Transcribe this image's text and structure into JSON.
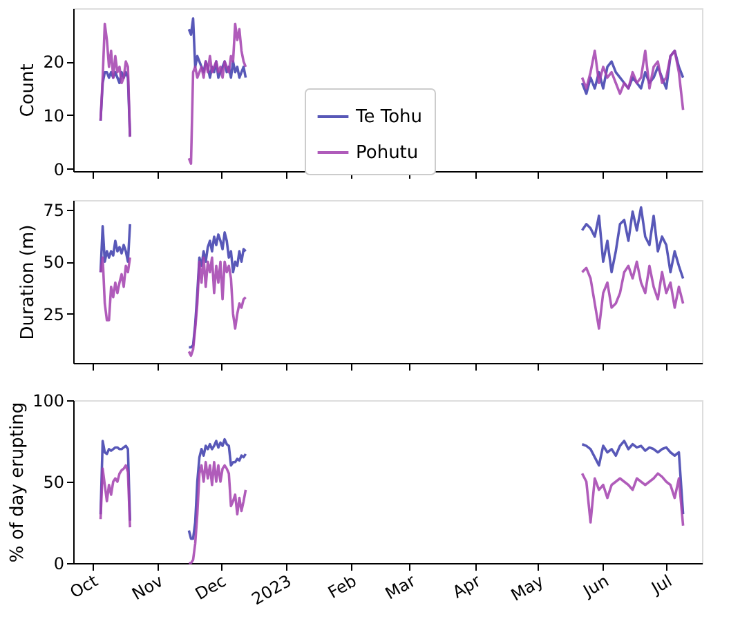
{
  "chart_data": [
    {
      "type": "line",
      "ylabel": "Count",
      "xlim": [
        "2022-09-22",
        "2023-07-18"
      ],
      "ylim": [
        -0.4,
        29.9
      ],
      "yticks": [
        0,
        10,
        20
      ],
      "grid": false,
      "legend": "bottom",
      "tick_labels": "y",
      "line_style": "solid",
      "marker": "none",
      "xticks": [
        {
          "value": "2022-10-01",
          "label": null
        },
        {
          "value": "2022-11-01",
          "label": null
        },
        {
          "value": "2022-12-01",
          "label": null
        },
        {
          "value": "2023-01-01",
          "label": null
        },
        {
          "value": "2023-02-01",
          "label": null
        },
        {
          "value": "2023-03-01",
          "label": null
        },
        {
          "value": "2023-04-01",
          "label": null
        },
        {
          "value": "2023-05-01",
          "label": null
        },
        {
          "value": "2023-06-01",
          "label": null
        },
        {
          "value": "2023-07-01",
          "label": null
        }
      ],
      "x": [
        "2022-10-05",
        "2022-10-06",
        "2022-10-07",
        "2022-10-08",
        "2022-10-09",
        "2022-10-10",
        "2022-10-11",
        "2022-10-12",
        "2022-10-13",
        "2022-10-14",
        "2022-10-15",
        "2022-10-16",
        "2022-10-17",
        "2022-10-18",
        "2022-10-19",
        "2022-11-01",
        "2022-11-16",
        "2022-11-17",
        "2022-11-18",
        "2022-11-19",
        "2022-11-20",
        "2022-11-21",
        "2022-11-22",
        "2022-11-23",
        "2022-11-24",
        "2022-11-25",
        "2022-11-26",
        "2022-11-27",
        "2022-11-28",
        "2022-11-29",
        "2022-11-30",
        "2022-12-01",
        "2022-12-02",
        "2022-12-03",
        "2022-12-04",
        "2022-12-05",
        "2022-12-06",
        "2022-12-07",
        "2022-12-08",
        "2022-12-09",
        "2022-12-10",
        "2022-12-11",
        "2022-12-12",
        "2022-12-13",
        "2023-02-01",
        "2023-05-22",
        "2023-05-24",
        "2023-05-26",
        "2023-05-28",
        "2023-05-30",
        "2023-06-01",
        "2023-06-03",
        "2023-06-05",
        "2023-06-07",
        "2023-06-09",
        "2023-06-11",
        "2023-06-13",
        "2023-06-15",
        "2023-06-17",
        "2023-06-19",
        "2023-06-21",
        "2023-06-23",
        "2023-06-25",
        "2023-06-27",
        "2023-06-29",
        "2023-07-01",
        "2023-07-03",
        "2023-07-05",
        "2023-07-07",
        "2023-07-09"
      ],
      "series": [
        {
          "name": "Te Tohu",
          "color": "#3b3bab",
          "values": [
            9,
            16,
            18,
            18,
            17,
            18,
            17,
            18,
            17,
            16,
            18,
            17,
            18,
            17,
            6,
            null,
            26,
            25,
            28,
            19,
            21,
            20,
            19,
            18,
            20,
            19,
            17,
            19,
            18,
            20,
            17,
            18,
            19,
            20,
            18,
            19,
            17,
            20,
            18,
            19,
            17,
            18,
            19,
            17,
            null,
            16,
            14,
            17,
            15,
            18,
            15,
            19,
            20,
            18,
            17,
            16,
            15,
            17,
            16,
            15,
            18,
            16,
            17,
            19,
            17,
            15,
            21,
            22,
            19,
            17
          ]
        },
        {
          "name": "Pohutu",
          "color": "#a23fae",
          "values": [
            9,
            17,
            27,
            24,
            19,
            22,
            17,
            21,
            18,
            19,
            16,
            17,
            20,
            19,
            6,
            null,
            2,
            1,
            18,
            19,
            17,
            18,
            19,
            17,
            20,
            18,
            21,
            18,
            19,
            20,
            18,
            19,
            17,
            20,
            19,
            18,
            21,
            20,
            27,
            24,
            26,
            22,
            20,
            19,
            null,
            17,
            15,
            18,
            22,
            16,
            19,
            17,
            18,
            16,
            14,
            16,
            15,
            18,
            16,
            17,
            22,
            15,
            19,
            20,
            16,
            17,
            21,
            22,
            18,
            11
          ]
        }
      ]
    },
    {
      "type": "line",
      "ylabel": "Duration (m)",
      "xlim": [
        "2022-09-22",
        "2023-07-18"
      ],
      "ylim": [
        1.5,
        79.5
      ],
      "yticks": [
        25,
        50,
        75
      ],
      "grid": false,
      "legend": false,
      "tick_labels": "y",
      "line_style": "solid",
      "marker": "none",
      "xticks": [
        {
          "value": "2022-10-01",
          "label": null
        },
        {
          "value": "2022-11-01",
          "label": null
        },
        {
          "value": "2022-12-01",
          "label": null
        },
        {
          "value": "2023-01-01",
          "label": null
        },
        {
          "value": "2023-02-01",
          "label": null
        },
        {
          "value": "2023-03-01",
          "label": null
        },
        {
          "value": "2023-04-01",
          "label": null
        },
        {
          "value": "2023-05-01",
          "label": null
        },
        {
          "value": "2023-06-01",
          "label": null
        },
        {
          "value": "2023-07-01",
          "label": null
        }
      ],
      "x": [
        "2022-10-05",
        "2022-10-06",
        "2022-10-07",
        "2022-10-08",
        "2022-10-09",
        "2022-10-10",
        "2022-10-11",
        "2022-10-12",
        "2022-10-13",
        "2022-10-14",
        "2022-10-15",
        "2022-10-16",
        "2022-10-17",
        "2022-10-18",
        "2022-10-19",
        "2022-11-01",
        "2022-11-16",
        "2022-11-17",
        "2022-11-18",
        "2022-11-19",
        "2022-11-20",
        "2022-11-21",
        "2022-11-22",
        "2022-11-23",
        "2022-11-24",
        "2022-11-25",
        "2022-11-26",
        "2022-11-27",
        "2022-11-28",
        "2022-11-29",
        "2022-11-30",
        "2022-12-01",
        "2022-12-02",
        "2022-12-03",
        "2022-12-04",
        "2022-12-05",
        "2022-12-06",
        "2022-12-07",
        "2022-12-08",
        "2022-12-09",
        "2022-12-10",
        "2022-12-11",
        "2022-12-12",
        "2022-12-13",
        "2023-02-01",
        "2023-05-22",
        "2023-05-24",
        "2023-05-26",
        "2023-05-28",
        "2023-05-30",
        "2023-06-01",
        "2023-06-03",
        "2023-06-05",
        "2023-06-07",
        "2023-06-09",
        "2023-06-11",
        "2023-06-13",
        "2023-06-15",
        "2023-06-17",
        "2023-06-19",
        "2023-06-21",
        "2023-06-23",
        "2023-06-25",
        "2023-06-27",
        "2023-06-29",
        "2023-07-01",
        "2023-07-03",
        "2023-07-05",
        "2023-07-07",
        "2023-07-09"
      ],
      "series": [
        {
          "color": "#3b3bab",
          "values": [
            45,
            67,
            50,
            55,
            52,
            55,
            53,
            60,
            55,
            57,
            54,
            58,
            55,
            50,
            68,
            null,
            9,
            9,
            10,
            20,
            35,
            52,
            48,
            55,
            50,
            57,
            60,
            55,
            62,
            58,
            63,
            60,
            56,
            64,
            60,
            52,
            55,
            45,
            50,
            48,
            55,
            50,
            56,
            55,
            null,
            65,
            68,
            66,
            62,
            72,
            50,
            60,
            45,
            55,
            68,
            70,
            60,
            74,
            65,
            76,
            62,
            58,
            72,
            55,
            62,
            58,
            45,
            55,
            48,
            42
          ]
        },
        {
          "color": "#a23fae",
          "values": [
            45,
            52,
            30,
            22,
            22,
            38,
            33,
            40,
            35,
            40,
            44,
            38,
            48,
            45,
            52,
            null,
            7,
            5,
            8,
            18,
            30,
            50,
            40,
            52,
            38,
            50,
            45,
            52,
            35,
            48,
            40,
            50,
            32,
            50,
            45,
            48,
            42,
            25,
            18,
            25,
            30,
            28,
            32,
            33,
            null,
            45,
            47,
            42,
            30,
            18,
            35,
            40,
            28,
            30,
            35,
            45,
            48,
            42,
            50,
            40,
            35,
            48,
            38,
            32,
            45,
            35,
            40,
            28,
            38,
            30
          ]
        }
      ]
    },
    {
      "type": "line",
      "ylabel": "% of day erupting",
      "xlim": [
        "2022-09-22",
        "2023-07-18"
      ],
      "ylim": [
        0,
        100
      ],
      "yticks": [
        0,
        50,
        100
      ],
      "grid": false,
      "legend": false,
      "line_style": "solid",
      "marker": "none",
      "xticks": [
        {
          "value": "2022-10-01",
          "label": "Oct"
        },
        {
          "value": "2022-11-01",
          "label": "Nov"
        },
        {
          "value": "2022-12-01",
          "label": "Dec"
        },
        {
          "value": "2023-01-01",
          "label": "2023"
        },
        {
          "value": "2023-02-01",
          "label": "Feb"
        },
        {
          "value": "2023-03-01",
          "label": "Mar"
        },
        {
          "value": "2023-04-01",
          "label": "Apr"
        },
        {
          "value": "2023-05-01",
          "label": "May"
        },
        {
          "value": "2023-06-01",
          "label": "Jun"
        },
        {
          "value": "2023-07-01",
          "label": "Jul"
        }
      ],
      "x": [
        "2022-10-05",
        "2022-10-06",
        "2022-10-07",
        "2022-10-08",
        "2022-10-09",
        "2022-10-10",
        "2022-10-11",
        "2022-10-12",
        "2022-10-13",
        "2022-10-14",
        "2022-10-15",
        "2022-10-16",
        "2022-10-17",
        "2022-10-18",
        "2022-10-19",
        "2022-11-01",
        "2022-11-16",
        "2022-11-17",
        "2022-11-18",
        "2022-11-19",
        "2022-11-20",
        "2022-11-21",
        "2022-11-22",
        "2022-11-23",
        "2022-11-24",
        "2022-11-25",
        "2022-11-26",
        "2022-11-27",
        "2022-11-28",
        "2022-11-29",
        "2022-11-30",
        "2022-12-01",
        "2022-12-02",
        "2022-12-03",
        "2022-12-04",
        "2022-12-05",
        "2022-12-06",
        "2022-12-07",
        "2022-12-08",
        "2022-12-09",
        "2022-12-10",
        "2022-12-11",
        "2022-12-12",
        "2022-12-13",
        "2023-02-01",
        "2023-05-22",
        "2023-05-24",
        "2023-05-26",
        "2023-05-28",
        "2023-05-30",
        "2023-06-01",
        "2023-06-03",
        "2023-06-05",
        "2023-06-07",
        "2023-06-09",
        "2023-06-11",
        "2023-06-13",
        "2023-06-15",
        "2023-06-17",
        "2023-06-19",
        "2023-06-21",
        "2023-06-23",
        "2023-06-25",
        "2023-06-27",
        "2023-06-29",
        "2023-07-01",
        "2023-07-03",
        "2023-07-05",
        "2023-07-07",
        "2023-07-09"
      ],
      "series": [
        {
          "color": "#3b3bab",
          "values": [
            30,
            75,
            68,
            67,
            70,
            69,
            70,
            71,
            71,
            70,
            70,
            71,
            72,
            70,
            26,
            null,
            20,
            15,
            15,
            25,
            50,
            65,
            70,
            66,
            72,
            70,
            73,
            70,
            72,
            75,
            71,
            74,
            72,
            76,
            73,
            72,
            60,
            62,
            62,
            64,
            63,
            66,
            65,
            67,
            null,
            73,
            72,
            70,
            65,
            60,
            72,
            68,
            70,
            66,
            72,
            75,
            70,
            73,
            71,
            72,
            69,
            71,
            70,
            68,
            70,
            71,
            68,
            66,
            68,
            30
          ]
        },
        {
          "color": "#a23fae",
          "values": [
            27,
            58,
            48,
            38,
            48,
            42,
            50,
            52,
            50,
            55,
            57,
            58,
            60,
            56,
            22,
            null,
            0,
            0,
            2,
            12,
            30,
            55,
            60,
            50,
            62,
            52,
            60,
            48,
            62,
            50,
            60,
            50,
            58,
            60,
            58,
            55,
            35,
            38,
            42,
            30,
            40,
            32,
            38,
            45,
            null,
            55,
            50,
            25,
            52,
            45,
            48,
            40,
            48,
            50,
            52,
            50,
            48,
            45,
            52,
            50,
            48,
            50,
            52,
            55,
            53,
            50,
            48,
            40,
            52,
            23
          ]
        }
      ]
    }
  ]
}
